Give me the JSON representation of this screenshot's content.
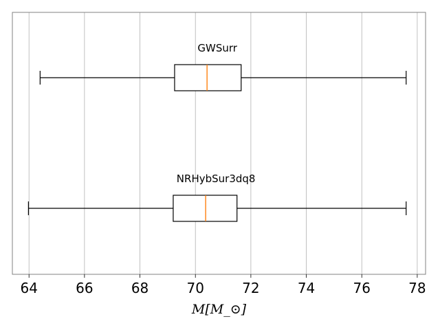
{
  "chart_data": {
    "type": "boxplot",
    "orientation": "horizontal",
    "xlabel": "M[M_⊙]",
    "xlim": [
      63.4,
      78.3
    ],
    "xticks": [
      64,
      66,
      68,
      70,
      72,
      74,
      76,
      78
    ],
    "xtick_labels": [
      "64",
      "66",
      "68",
      "70",
      "72",
      "74",
      "76",
      "78"
    ],
    "grid": "vertical",
    "series": [
      {
        "name": "GWSurr",
        "whisker_low": 64.4,
        "q1": 69.25,
        "median": 70.42,
        "q3": 71.65,
        "whisker_high": 77.6
      },
      {
        "name": "NRHybSur3dq8",
        "whisker_low": 63.98,
        "q1": 69.2,
        "median": 70.37,
        "q3": 71.5,
        "whisker_high": 77.6
      }
    ]
  },
  "colors": {
    "box": "#000000",
    "median": "#ff7f0e",
    "grid": "#b0b0b0",
    "frame": "#808080"
  }
}
